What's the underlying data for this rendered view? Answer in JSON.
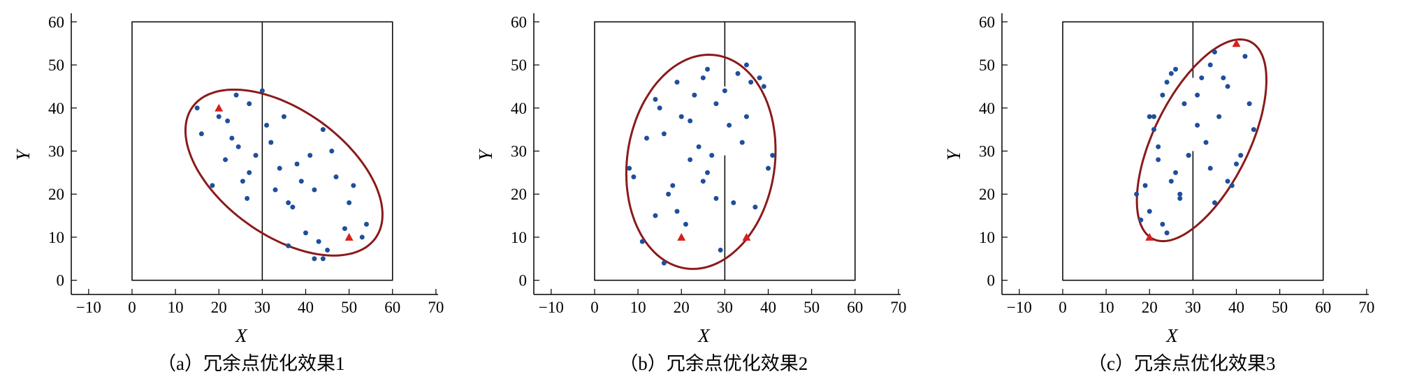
{
  "chart_data": [
    {
      "type": "scatter",
      "caption": "（a）冗余点优化效果1",
      "x_label": "X",
      "y_label": "Y",
      "xlim": [
        -14,
        70.5
      ],
      "ylim": [
        -3.3,
        62
      ],
      "xticks": [
        {
          "value": -10,
          "label": "−10"
        },
        0,
        10,
        20,
        30,
        40,
        50,
        60,
        70
      ],
      "yticks": [
        0,
        10,
        20,
        30,
        40,
        50,
        60
      ],
      "series": [
        {
          "marker": "circle",
          "color": "#1f4e9c",
          "x": [
            15,
            16,
            20,
            22,
            24,
            23,
            27,
            30,
            31,
            32,
            24.5,
            21.5,
            28.5,
            27,
            25.5,
            26.5,
            18.5,
            35,
            36,
            34,
            37,
            39,
            41,
            42,
            44,
            46,
            38,
            40,
            43,
            47,
            49,
            50,
            51,
            53,
            54,
            45,
            44,
            42,
            36,
            33
          ],
          "values": [
            40,
            34,
            38,
            37,
            43,
            33,
            41,
            44,
            36,
            32,
            31,
            28,
            29,
            25,
            23,
            19,
            22,
            38,
            18,
            26,
            17,
            23,
            29,
            21,
            35,
            30,
            27,
            11,
            9,
            24,
            12,
            18,
            22,
            10,
            13,
            7,
            5,
            5,
            8,
            21
          ]
        },
        {
          "marker": "triangle",
          "color": "#d62020",
          "x": [
            20,
            50
          ],
          "values": [
            40,
            10
          ]
        }
      ]
    },
    {
      "type": "scatter",
      "caption": "（b）冗余点优化效果2",
      "x_label": "X",
      "y_label": "Y",
      "xlim": [
        -14,
        70.5
      ],
      "ylim": [
        -3.3,
        62
      ],
      "xticks": [
        {
          "value": -10,
          "label": "−10"
        },
        0,
        10,
        20,
        30,
        40,
        50,
        60,
        70
      ],
      "yticks": [
        0,
        10,
        20,
        30,
        40,
        50,
        60
      ],
      "series": [
        {
          "marker": "circle",
          "color": "#1f4e9c",
          "x": [
            8,
            9,
            12,
            14,
            15,
            16,
            19,
            20,
            22,
            23,
            25,
            26,
            28,
            30,
            33,
            35,
            36,
            38,
            39,
            40,
            41,
            31,
            34,
            35,
            27,
            26,
            25,
            22,
            21,
            19,
            18,
            17,
            16,
            14,
            11,
            24,
            29,
            32,
            37,
            28
          ],
          "values": [
            26,
            24,
            33,
            42,
            40,
            34,
            46,
            38,
            37,
            43,
            47,
            49,
            41,
            44,
            48,
            50,
            46,
            47,
            45,
            26,
            29,
            36,
            32,
            38,
            29,
            25,
            23,
            28,
            13,
            16,
            22,
            20,
            4,
            15,
            9,
            31,
            7,
            18,
            17,
            19
          ]
        },
        {
          "marker": "triangle",
          "color": "#d62020",
          "x": [
            20,
            35
          ],
          "values": [
            10,
            10
          ]
        }
      ]
    },
    {
      "type": "scatter",
      "caption": "（c）冗余点优化效果3",
      "x_label": "X",
      "y_label": "Y",
      "xlim": [
        -14,
        70.5
      ],
      "ylim": [
        -3.3,
        62
      ],
      "xticks": [
        {
          "value": -10,
          "label": "−10"
        },
        0,
        10,
        20,
        30,
        40,
        50,
        60,
        70
      ],
      "yticks": [
        0,
        10,
        20,
        30,
        40,
        50,
        60
      ],
      "series": [
        {
          "marker": "circle",
          "color": "#1f4e9c",
          "x": [
            17,
            18,
            19,
            20,
            21,
            22,
            23,
            24,
            25,
            26,
            27,
            28,
            29,
            31,
            32,
            33,
            34,
            35,
            36,
            37,
            38,
            39,
            40,
            41,
            42,
            43,
            44,
            21,
            23,
            25,
            26,
            27,
            29,
            34,
            35,
            38,
            20,
            22,
            24,
            31
          ],
          "values": [
            20,
            14,
            22,
            16,
            38,
            28,
            13,
            11,
            23,
            25,
            19,
            41,
            29,
            43,
            47,
            32,
            50,
            53,
            38,
            47,
            45,
            22,
            27,
            29,
            52,
            41,
            35,
            35,
            43,
            48,
            49,
            20,
            29,
            26,
            18,
            23,
            38,
            31,
            46,
            36
          ]
        },
        {
          "marker": "triangle",
          "color": "#d62020",
          "x": [
            20,
            40
          ],
          "values": [
            10,
            55
          ]
        }
      ]
    }
  ]
}
